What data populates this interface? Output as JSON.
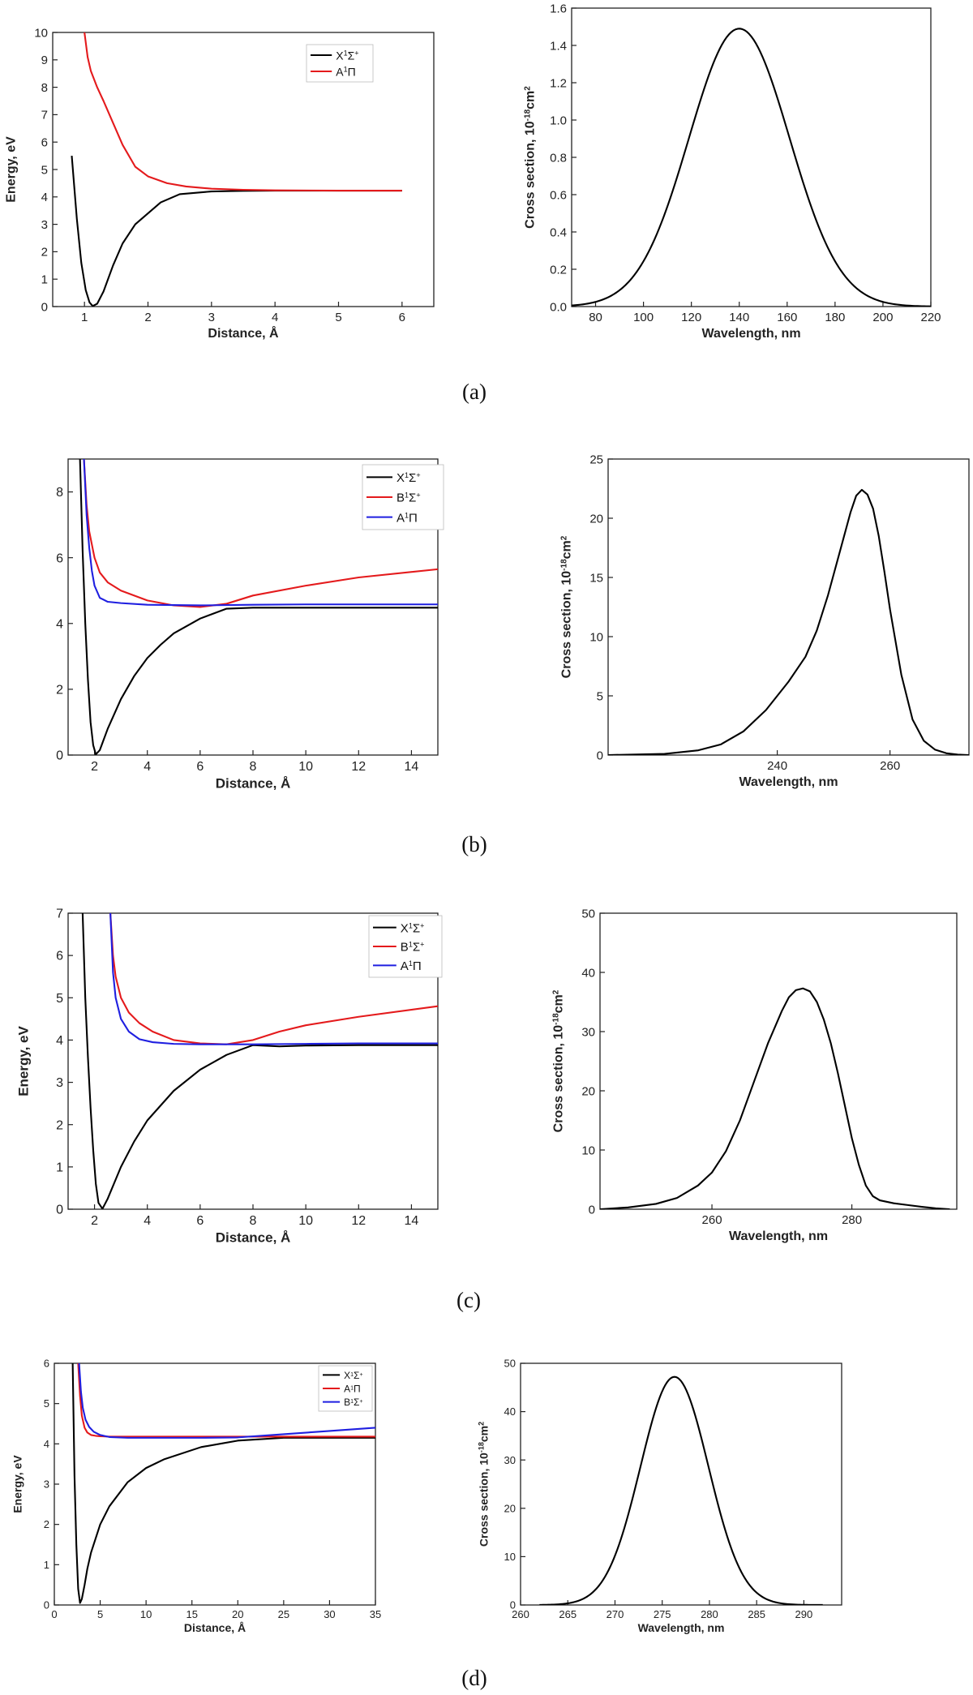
{
  "panel_labels": [
    "(a)",
    "(b)",
    "(c)",
    "(d)"
  ],
  "colors": {
    "X": "#000000",
    "B": "#e41a1c",
    "A": "#1f1fe0",
    "cross": "#000000"
  },
  "chart_data": [
    {
      "id": "a-pot",
      "type": "line",
      "xlabel": "Distance, Å",
      "ylabel": "Energy, eV",
      "xlim": [
        0.5,
        6.5
      ],
      "ylim": [
        0,
        10
      ],
      "xticks": [
        1,
        2,
        3,
        4,
        5,
        6
      ],
      "yticks": [
        0,
        1,
        2,
        3,
        4,
        5,
        6,
        7,
        8,
        9,
        10
      ],
      "legend": "top-center",
      "series": [
        {
          "name": "X¹Σ⁺",
          "ckey": "X",
          "x": [
            0.8,
            0.88,
            0.95,
            1.02,
            1.08,
            1.13,
            1.2,
            1.3,
            1.45,
            1.6,
            1.8,
            2.0,
            2.2,
            2.5,
            3.0,
            3.5,
            4.0,
            5.0,
            6.0
          ],
          "y": [
            5.5,
            3.2,
            1.6,
            0.6,
            0.15,
            0.02,
            0.1,
            0.55,
            1.5,
            2.3,
            3.0,
            3.4,
            3.8,
            4.1,
            4.2,
            4.22,
            4.23,
            4.23,
            4.23
          ]
        },
        {
          "name": "A¹Π",
          "ckey": "B",
          "x": [
            1.0,
            1.05,
            1.1,
            1.2,
            1.3,
            1.45,
            1.6,
            1.8,
            2.0,
            2.3,
            2.6,
            3.0,
            3.5,
            4.0,
            5.0,
            6.0
          ],
          "y": [
            10,
            9.1,
            8.6,
            8.0,
            7.5,
            6.7,
            5.9,
            5.1,
            4.75,
            4.5,
            4.38,
            4.3,
            4.26,
            4.24,
            4.23,
            4.23
          ]
        }
      ]
    },
    {
      "id": "a-cs",
      "type": "line",
      "xlabel": "Wavelength, nm",
      "ylabel": "Cross section, 10⁻¹⁸cm²",
      "xlim": [
        70,
        220
      ],
      "ylim": [
        0,
        1.6
      ],
      "xticks": [
        80,
        100,
        120,
        140,
        160,
        180,
        200,
        220
      ],
      "yticks": [
        0,
        0.2,
        0.4,
        0.6,
        0.8,
        1.0,
        1.2,
        1.4,
        1.6
      ],
      "ytick_labels": [
        "0.0",
        "0.2",
        "0.4",
        "0.6",
        "0.8",
        "1.0",
        "1.2",
        "1.4",
        "1.6"
      ],
      "series": [
        {
          "name": "cross section",
          "ckey": "cross",
          "gauss": {
            "mu": 140,
            "sigma": 21,
            "amp": 1.49,
            "from": 70,
            "to": 220
          }
        }
      ]
    },
    {
      "id": "b-pot",
      "type": "line",
      "xlabel": "Distance, Å",
      "ylabel": "",
      "xlim": [
        1,
        15
      ],
      "ylim": [
        0,
        9
      ],
      "xticks": [
        2,
        4,
        6,
        8,
        10,
        12,
        14
      ],
      "yticks": [
        0,
        2,
        4,
        6,
        8
      ],
      "legend": "top-right",
      "series": [
        {
          "name": "X¹Σ⁺",
          "ckey": "X",
          "x": [
            1.45,
            1.55,
            1.65,
            1.75,
            1.85,
            1.95,
            2.05,
            2.2,
            2.5,
            3.0,
            3.5,
            4.0,
            4.5,
            5.0,
            6.0,
            7.0,
            8.0,
            10.0,
            12.0,
            15.0
          ],
          "y": [
            9,
            6.2,
            4.0,
            2.3,
            1.0,
            0.3,
            0.02,
            0.15,
            0.8,
            1.7,
            2.4,
            2.95,
            3.35,
            3.7,
            4.15,
            4.45,
            4.48,
            4.48,
            4.48,
            4.48
          ]
        },
        {
          "name": "B¹Σ⁺",
          "ckey": "B",
          "x": [
            1.6,
            1.7,
            1.8,
            2.0,
            2.2,
            2.5,
            3.0,
            4.0,
            5.0,
            6.0,
            7.0,
            8.0,
            10.0,
            12.0,
            15.0
          ],
          "y": [
            9,
            7.6,
            6.8,
            6.0,
            5.55,
            5.25,
            5.0,
            4.7,
            4.55,
            4.5,
            4.6,
            4.85,
            5.15,
            5.4,
            5.65
          ]
        },
        {
          "name": "A¹Π",
          "ckey": "A",
          "x": [
            1.6,
            1.7,
            1.8,
            1.9,
            2.0,
            2.2,
            2.5,
            3.0,
            4.0,
            6.0,
            8.0,
            10.0,
            15.0
          ],
          "y": [
            9,
            7.3,
            6.3,
            5.6,
            5.15,
            4.78,
            4.66,
            4.62,
            4.57,
            4.55,
            4.57,
            4.58,
            4.58
          ]
        }
      ]
    },
    {
      "id": "b-cs",
      "type": "line",
      "xlabel": "Wavelength, nm",
      "ylabel": "Cross section, 10⁻¹⁸cm²",
      "xlim": [
        210,
        274
      ],
      "ylim": [
        0,
        25
      ],
      "xticks": [
        240,
        260
      ],
      "yticks": [
        0,
        5,
        10,
        15,
        20,
        25
      ],
      "series": [
        {
          "name": "cross section",
          "ckey": "cross",
          "x": [
            210,
            220,
            226,
            230,
            234,
            238,
            242,
            245,
            247,
            249,
            251,
            253,
            254,
            255,
            256,
            257,
            258,
            259,
            260,
            262,
            264,
            266,
            268,
            270,
            272,
            274
          ],
          "y": [
            0,
            0.1,
            0.4,
            0.9,
            2.0,
            3.8,
            6.2,
            8.3,
            10.5,
            13.5,
            17.0,
            20.5,
            21.9,
            22.4,
            22.0,
            20.8,
            18.5,
            15.5,
            12.3,
            6.8,
            3.0,
            1.2,
            0.45,
            0.15,
            0.04,
            0
          ]
        }
      ]
    },
    {
      "id": "c-pot",
      "type": "line",
      "xlabel": "Distance, Å",
      "ylabel": "Energy, eV",
      "xlim": [
        1,
        15
      ],
      "ylim": [
        0,
        7
      ],
      "xticks": [
        2,
        4,
        6,
        8,
        10,
        12,
        14
      ],
      "yticks": [
        0,
        1,
        2,
        3,
        4,
        5,
        6,
        7
      ],
      "legend": "top-right",
      "series": [
        {
          "name": "X¹Σ⁺",
          "ckey": "X",
          "x": [
            1.55,
            1.65,
            1.75,
            1.85,
            1.95,
            2.05,
            2.15,
            2.3,
            2.5,
            3.0,
            3.5,
            4.0,
            5.0,
            6.0,
            7.0,
            8.0,
            9.0,
            10.0,
            12.0,
            15.0
          ],
          "y": [
            7,
            5.0,
            3.6,
            2.4,
            1.4,
            0.6,
            0.15,
            0.01,
            0.25,
            1.0,
            1.6,
            2.1,
            2.8,
            3.3,
            3.65,
            3.88,
            3.85,
            3.87,
            3.88,
            3.88
          ]
        },
        {
          "name": "B¹Σ⁺",
          "ckey": "B",
          "x": [
            2.6,
            2.7,
            2.8,
            3.0,
            3.3,
            3.7,
            4.2,
            5.0,
            6.0,
            7.0,
            8.0,
            9.0,
            10.0,
            12.0,
            15.0
          ],
          "y": [
            7,
            6.0,
            5.5,
            5.0,
            4.65,
            4.4,
            4.2,
            4.0,
            3.92,
            3.9,
            4.0,
            4.2,
            4.35,
            4.55,
            4.8
          ]
        },
        {
          "name": "A¹Π",
          "ckey": "A",
          "x": [
            2.6,
            2.7,
            2.8,
            3.0,
            3.3,
            3.7,
            4.2,
            5.0,
            6.0,
            8.0,
            10.0,
            12.0,
            15.0
          ],
          "y": [
            7,
            5.6,
            5.0,
            4.5,
            4.2,
            4.02,
            3.95,
            3.91,
            3.9,
            3.9,
            3.91,
            3.92,
            3.92
          ]
        }
      ]
    },
    {
      "id": "c-cs",
      "type": "line",
      "xlabel": "Wavelength, nm",
      "ylabel": "Cross section, 10⁻¹⁸cm²",
      "xlim": [
        244,
        295
      ],
      "ylim": [
        0,
        50
      ],
      "xticks": [
        260,
        280
      ],
      "yticks": [
        0,
        10,
        20,
        30,
        40,
        50
      ],
      "series": [
        {
          "name": "cross section",
          "ckey": "cross",
          "x": [
            244,
            248,
            252,
            255,
            258,
            260,
            262,
            264,
            266,
            268,
            270,
            271,
            272,
            273,
            274,
            275,
            276,
            277,
            278,
            279,
            280,
            281,
            282,
            283,
            284,
            286,
            288,
            290,
            292,
            294
          ],
          "y": [
            0,
            0.3,
            0.9,
            1.9,
            4.0,
            6.2,
            9.8,
            15.0,
            21.5,
            28.0,
            33.5,
            35.8,
            37.0,
            37.3,
            36.8,
            35.0,
            32.0,
            28.0,
            23.0,
            17.5,
            12.0,
            7.5,
            4.0,
            2.2,
            1.5,
            1.0,
            0.7,
            0.4,
            0.15,
            0
          ]
        }
      ]
    },
    {
      "id": "d-pot",
      "type": "line",
      "xlabel": "Distance, Å",
      "ylabel": "Energy, eV",
      "xlim": [
        0,
        35
      ],
      "ylim": [
        0,
        6
      ],
      "xticks": [
        0,
        5,
        10,
        15,
        20,
        25,
        30,
        35
      ],
      "yticks": [
        0,
        1,
        2,
        3,
        4,
        5,
        6
      ],
      "legend": "top-right",
      "series": [
        {
          "name": "X¹Σ⁺",
          "ckey": "X",
          "x": [
            2.0,
            2.2,
            2.4,
            2.6,
            2.8,
            3.0,
            3.3,
            3.6,
            4.0,
            5.0,
            6.0,
            8.0,
            10.0,
            12.0,
            16.0,
            20.0,
            25.0,
            30.0,
            35.0
          ],
          "y": [
            6,
            3.2,
            1.5,
            0.4,
            0.05,
            0.15,
            0.5,
            0.9,
            1.3,
            2.0,
            2.45,
            3.05,
            3.4,
            3.62,
            3.92,
            4.08,
            4.15,
            4.15,
            4.15
          ]
        },
        {
          "name": "A¹Π",
          "ckey": "B",
          "x": [
            2.6,
            2.8,
            3.0,
            3.3,
            3.6,
            4.0,
            4.5,
            5.0,
            6.0,
            8.0,
            12.0,
            20.0,
            35.0
          ],
          "y": [
            6,
            5.2,
            4.7,
            4.4,
            4.28,
            4.22,
            4.2,
            4.19,
            4.18,
            4.18,
            4.18,
            4.18,
            4.18
          ]
        },
        {
          "name": "B¹Σ⁺",
          "ckey": "A",
          "x": [
            2.7,
            2.9,
            3.1,
            3.4,
            3.8,
            4.3,
            5.0,
            6.0,
            8.0,
            12.0,
            16.0,
            20.0,
            25.0,
            30.0,
            35.0
          ],
          "y": [
            6,
            5.3,
            4.9,
            4.6,
            4.42,
            4.3,
            4.22,
            4.17,
            4.15,
            4.15,
            4.15,
            4.16,
            4.24,
            4.32,
            4.4
          ]
        }
      ]
    },
    {
      "id": "d-cs",
      "type": "line",
      "xlabel": "Wavelength, nm",
      "ylabel": "Cross section, 10⁻¹⁸cm²",
      "xlim": [
        260,
        294
      ],
      "ylim": [
        0,
        50
      ],
      "xticks": [
        260,
        265,
        270,
        275,
        280,
        285,
        290
      ],
      "yticks": [
        0,
        10,
        20,
        30,
        40,
        50
      ],
      "series": [
        {
          "name": "cross section",
          "ckey": "cross",
          "gauss": {
            "mu": 276.3,
            "sigma": 3.6,
            "amp": 47.2,
            "from": 262,
            "to": 292
          }
        }
      ]
    }
  ]
}
